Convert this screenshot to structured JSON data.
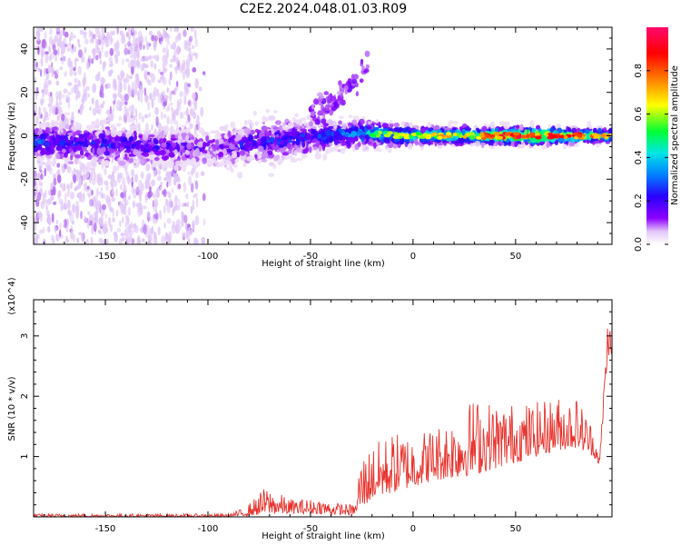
{
  "title": "C2E2.2024.048.01.03.R09",
  "chart_data": [
    {
      "type": "heatmap",
      "xlabel": "Height of straight line (km)",
      "ylabel": "Frequency (Hz)",
      "xlim": [
        -185,
        97
      ],
      "ylim": [
        -50,
        50
      ],
      "xticks": [
        -150,
        -100,
        -50,
        0,
        50
      ],
      "yticks": [
        40,
        20,
        0,
        -20,
        -40
      ],
      "colorbar": {
        "label": "Normalized spectral amplitude",
        "range": [
          0,
          1
        ],
        "ticks": [
          "0.0",
          "0.2",
          "0.4",
          "0.6",
          "0.8"
        ],
        "colormap": [
          "#ffffff",
          "#e3c6f7",
          "#8c00ff",
          "#2a00ff",
          "#0080ff",
          "#00e6e6",
          "#00ff33",
          "#ffff00",
          "#ff7f00",
          "#ff0000",
          "#ff0a6e"
        ]
      },
      "ridge": [
        {
          "x": -185,
          "freq": -3,
          "width": 8,
          "amp": 0.32
        },
        {
          "x": -150,
          "freq": -4,
          "width": 9,
          "amp": 0.28
        },
        {
          "x": -120,
          "freq": -5,
          "width": 8,
          "amp": 0.25
        },
        {
          "x": -100,
          "freq": -6,
          "width": 7,
          "amp": 0.2
        },
        {
          "x": -85,
          "freq": -4,
          "width": 9,
          "amp": 0.25
        },
        {
          "x": -65,
          "freq": -2,
          "width": 9,
          "amp": 0.3
        },
        {
          "x": -45,
          "freq": 0,
          "width": 7,
          "amp": 0.3
        },
        {
          "x": -25,
          "freq": 1,
          "width": 6,
          "amp": 0.45
        },
        {
          "x": 0,
          "freq": 0,
          "width": 4,
          "amp": 0.55
        },
        {
          "x": 30,
          "freq": 0,
          "width": 4,
          "amp": 0.65
        },
        {
          "x": 60,
          "freq": 0,
          "width": 4,
          "amp": 0.85
        },
        {
          "x": 97,
          "freq": 0,
          "width": 3,
          "amp": 0.6
        }
      ],
      "branch": [
        {
          "x": -50,
          "freq": 10
        },
        {
          "x": -40,
          "freq": 15
        },
        {
          "x": -33,
          "freq": 20
        },
        {
          "x": -22,
          "freq": 33
        }
      ]
    },
    {
      "type": "line",
      "xlabel": "Height of straight line (km)",
      "ylabel": "SNR (10 * v/v)",
      "scale_label": "(x10^4)",
      "xlim": [
        -185,
        97
      ],
      "ylim": [
        0,
        3.6
      ],
      "xticks": [
        -150,
        -100,
        -50,
        0,
        50
      ],
      "yticks": [
        1,
        2,
        3
      ],
      "color": "#e8322c",
      "envelope": {
        "x": [
          -185,
          -90,
          -82,
          -72,
          -60,
          -45,
          -40,
          -28,
          -26,
          -20,
          -10,
          0,
          10,
          20,
          30,
          40,
          50,
          60,
          70,
          80,
          88,
          91,
          93,
          95,
          97
        ],
        "y": [
          0.05,
          0.05,
          0.15,
          0.5,
          0.3,
          0.3,
          0.25,
          0.2,
          1.0,
          1.2,
          1.4,
          1.4,
          1.5,
          1.7,
          2.0,
          1.9,
          1.9,
          1.9,
          2.0,
          2.0,
          1.5,
          1.0,
          2.2,
          3.4,
          3.0
        ]
      },
      "floor": {
        "x": [
          -185,
          -90,
          -80,
          -70,
          -60,
          -45,
          -30,
          -26,
          -20,
          -10,
          0,
          10,
          20,
          30,
          40,
          50,
          60,
          70,
          80,
          88,
          91,
          93,
          95,
          97
        ],
        "y": [
          0.0,
          0.0,
          0.02,
          0.05,
          0.05,
          0.05,
          0.03,
          0.1,
          0.3,
          0.4,
          0.5,
          0.6,
          0.65,
          0.7,
          0.8,
          0.9,
          1.0,
          1.1,
          1.15,
          1.0,
          0.85,
          1.8,
          2.7,
          2.6
        ]
      }
    }
  ]
}
